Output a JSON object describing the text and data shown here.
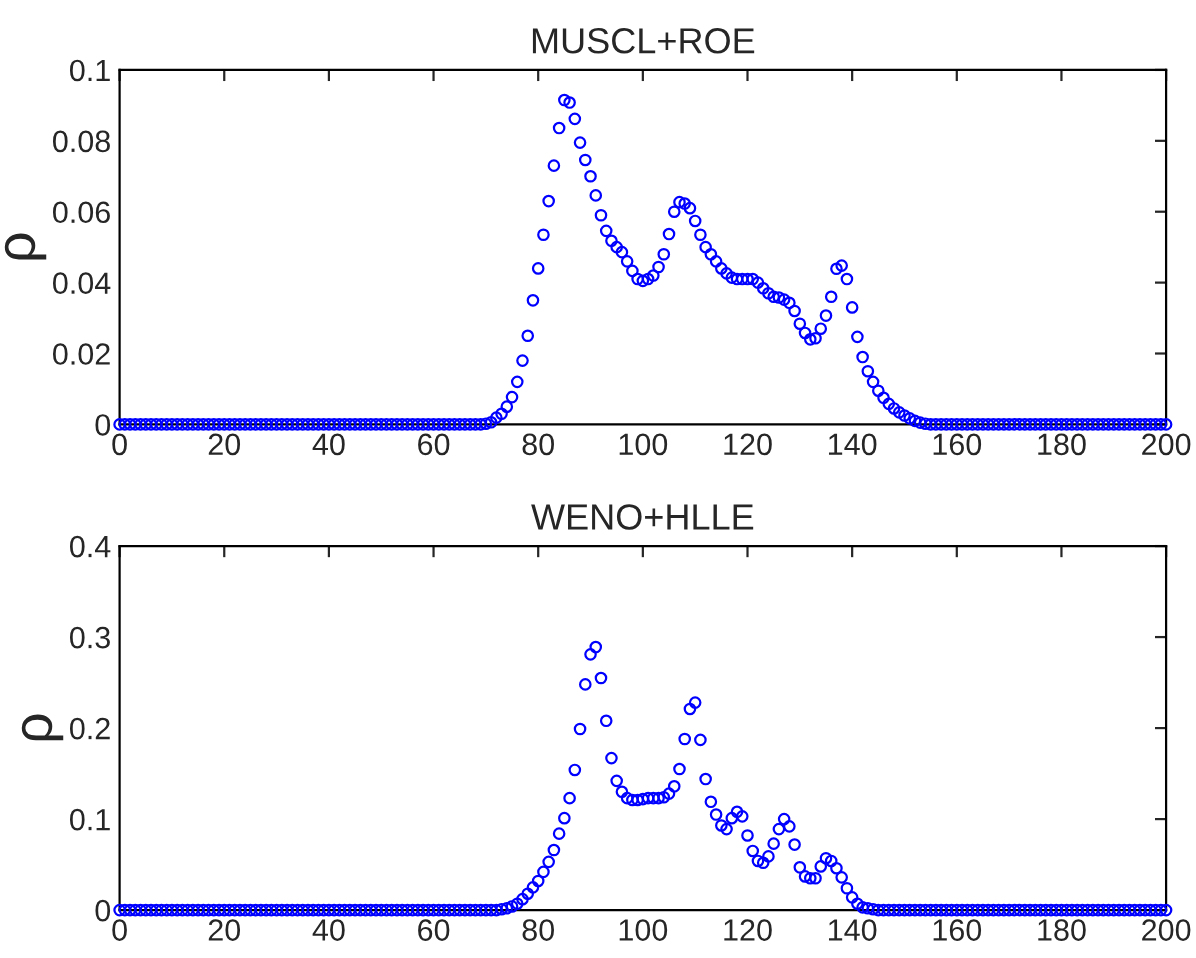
{
  "chart_data": [
    {
      "type": "scatter",
      "title": "MUSCL+ROE",
      "ylabel": "ρ",
      "marker": "circle",
      "grid": false,
      "xlim": [
        0,
        200
      ],
      "ylim": [
        0,
        0.1
      ],
      "xticks": [
        0,
        20,
        40,
        60,
        80,
        100,
        120,
        140,
        160,
        180,
        200
      ],
      "yticks": [
        0,
        0.02,
        0.04,
        0.06,
        0.08,
        {
          "value": 0.1,
          "label": "0.1"
        }
      ],
      "x": [
        0,
        1,
        2,
        3,
        4,
        5,
        6,
        7,
        8,
        9,
        10,
        11,
        12,
        13,
        14,
        15,
        16,
        17,
        18,
        19,
        20,
        21,
        22,
        23,
        24,
        25,
        26,
        27,
        28,
        29,
        30,
        31,
        32,
        33,
        34,
        35,
        36,
        37,
        38,
        39,
        40,
        41,
        42,
        43,
        44,
        45,
        46,
        47,
        48,
        49,
        50,
        51,
        52,
        53,
        54,
        55,
        56,
        57,
        58,
        59,
        60,
        61,
        62,
        63,
        64,
        65,
        66,
        67,
        68,
        69,
        70,
        71,
        72,
        73,
        74,
        75,
        76,
        77,
        78,
        79,
        80,
        81,
        82,
        83,
        84,
        85,
        86,
        87,
        88,
        89,
        90,
        91,
        92,
        93,
        94,
        95,
        96,
        97,
        98,
        99,
        100,
        101,
        102,
        103,
        104,
        105,
        106,
        107,
        108,
        109,
        110,
        111,
        112,
        113,
        114,
        115,
        116,
        117,
        118,
        119,
        120,
        121,
        122,
        123,
        124,
        125,
        126,
        127,
        128,
        129,
        130,
        131,
        132,
        133,
        134,
        135,
        136,
        137,
        138,
        139,
        140,
        141,
        142,
        143,
        144,
        145,
        146,
        147,
        148,
        149,
        150,
        151,
        152,
        153,
        154,
        155,
        156,
        157,
        158,
        159,
        160,
        161,
        162,
        163,
        164,
        165,
        166,
        167,
        168,
        169,
        170,
        171,
        172,
        173,
        174,
        175,
        176,
        177,
        178,
        179,
        180,
        181,
        182,
        183,
        184,
        185,
        186,
        187,
        188,
        189,
        190,
        191,
        192,
        193,
        194,
        195,
        196,
        197,
        198,
        199,
        200
      ],
      "series": [
        {
          "color": "#0000ff",
          "values": [
            0,
            0,
            0,
            0,
            0,
            0,
            0,
            0,
            0,
            0,
            0,
            0,
            0,
            0,
            0,
            0,
            0,
            0,
            0,
            0,
            0,
            0,
            0,
            0,
            0,
            0,
            0,
            0,
            0,
            0,
            0,
            0,
            0,
            0,
            0,
            0,
            0,
            0,
            0,
            0,
            0,
            0,
            0,
            0,
            0,
            0,
            0,
            0,
            0,
            0,
            0,
            0,
            0,
            0,
            0,
            0,
            0,
            0,
            0,
            0,
            0,
            0,
            0,
            0,
            0,
            0,
            0,
            0,
            0,
            0,
            0.0002,
            0.0006,
            0.0019,
            0.003,
            0.005,
            0.0077,
            0.012,
            0.018,
            0.025,
            0.035,
            0.044,
            0.0535,
            0.063,
            0.073,
            0.0836,
            0.0915,
            0.0908,
            0.0862,
            0.0795,
            0.0746,
            0.07,
            0.0646,
            0.059,
            0.0546,
            0.0518,
            0.05,
            0.0486,
            0.046,
            0.0433,
            0.041,
            0.0405,
            0.041,
            0.042,
            0.0444,
            0.048,
            0.0537,
            0.06,
            0.0627,
            0.0623,
            0.061,
            0.0574,
            0.0535,
            0.05,
            0.048,
            0.046,
            0.044,
            0.0426,
            0.0414,
            0.041,
            0.041,
            0.041,
            0.041,
            0.04,
            0.0384,
            0.037,
            0.036,
            0.0358,
            0.0352,
            0.0343,
            0.032,
            0.0284,
            0.0258,
            0.024,
            0.0243,
            0.027,
            0.0307,
            0.036,
            0.0439,
            0.0448,
            0.041,
            0.033,
            0.0247,
            0.019,
            0.015,
            0.012,
            0.0095,
            0.0075,
            0.0058,
            0.0045,
            0.0034,
            0.0025,
            0.0017,
            0.001,
            0.0005,
            0.0002,
            0,
            0,
            0,
            0,
            0,
            0,
            0,
            0,
            0,
            0,
            0,
            0,
            0,
            0,
            0,
            0,
            0,
            0,
            0,
            0,
            0,
            0,
            0,
            0,
            0,
            0,
            0,
            0,
            0,
            0,
            0,
            0,
            0,
            0,
            0,
            0,
            0,
            0,
            0,
            0,
            0,
            0,
            0,
            0,
            0,
            0
          ]
        }
      ]
    },
    {
      "type": "scatter",
      "title": "WENO+HLLE",
      "ylabel": "ρ",
      "marker": "circle",
      "grid": false,
      "xlim": [
        0,
        200
      ],
      "ylim": [
        0,
        0.4
      ],
      "xticks": [
        0,
        20,
        40,
        60,
        80,
        100,
        120,
        140,
        160,
        180,
        200
      ],
      "yticks": [
        0,
        0.1,
        0.2,
        0.3,
        0.4
      ],
      "x": [
        0,
        1,
        2,
        3,
        4,
        5,
        6,
        7,
        8,
        9,
        10,
        11,
        12,
        13,
        14,
        15,
        16,
        17,
        18,
        19,
        20,
        21,
        22,
        23,
        24,
        25,
        26,
        27,
        28,
        29,
        30,
        31,
        32,
        33,
        34,
        35,
        36,
        37,
        38,
        39,
        40,
        41,
        42,
        43,
        44,
        45,
        46,
        47,
        48,
        49,
        50,
        51,
        52,
        53,
        54,
        55,
        56,
        57,
        58,
        59,
        60,
        61,
        62,
        63,
        64,
        65,
        66,
        67,
        68,
        69,
        70,
        71,
        72,
        73,
        74,
        75,
        76,
        77,
        78,
        79,
        80,
        81,
        82,
        83,
        84,
        85,
        86,
        87,
        88,
        89,
        90,
        91,
        92,
        93,
        94,
        95,
        96,
        97,
        98,
        99,
        100,
        101,
        102,
        103,
        104,
        105,
        106,
        107,
        108,
        109,
        110,
        111,
        112,
        113,
        114,
        115,
        116,
        117,
        118,
        119,
        120,
        121,
        122,
        123,
        124,
        125,
        126,
        127,
        128,
        129,
        130,
        131,
        132,
        133,
        134,
        135,
        136,
        137,
        138,
        139,
        140,
        141,
        142,
        143,
        144,
        145,
        146,
        147,
        148,
        149,
        150,
        151,
        152,
        153,
        154,
        155,
        156,
        157,
        158,
        159,
        160,
        161,
        162,
        163,
        164,
        165,
        166,
        167,
        168,
        169,
        170,
        171,
        172,
        173,
        174,
        175,
        176,
        177,
        178,
        179,
        180,
        181,
        182,
        183,
        184,
        185,
        186,
        187,
        188,
        189,
        190,
        191,
        192,
        193,
        194,
        195,
        196,
        197,
        198,
        199,
        200
      ],
      "series": [
        {
          "color": "#0000ff",
          "values": [
            0,
            0,
            0,
            0,
            0,
            0,
            0,
            0,
            0,
            0,
            0,
            0,
            0,
            0,
            0,
            0,
            0,
            0,
            0,
            0,
            0,
            0,
            0,
            0,
            0,
            0,
            0,
            0,
            0,
            0,
            0,
            0,
            0,
            0,
            0,
            0,
            0,
            0,
            0,
            0,
            0,
            0,
            0,
            0,
            0,
            0,
            0,
            0,
            0,
            0,
            0,
            0,
            0,
            0,
            0,
            0,
            0,
            0,
            0,
            0,
            0,
            0,
            0,
            0,
            0,
            0,
            0,
            0,
            0,
            0,
            0,
            0,
            0,
            0.001,
            0.002,
            0.004,
            0.007,
            0.012,
            0.018,
            0.025,
            0.032,
            0.042,
            0.053,
            0.066,
            0.084,
            0.101,
            0.123,
            0.154,
            0.199,
            0.248,
            0.281,
            0.289,
            0.255,
            0.208,
            0.167,
            0.142,
            0.13,
            0.123,
            0.121,
            0.121,
            0.122,
            0.123,
            0.123,
            0.123,
            0.124,
            0.128,
            0.136,
            0.155,
            0.188,
            0.221,
            0.228,
            0.187,
            0.144,
            0.119,
            0.105,
            0.093,
            0.089,
            0.101,
            0.108,
            0.103,
            0.082,
            0.065,
            0.054,
            0.052,
            0.059,
            0.073,
            0.089,
            0.1,
            0.092,
            0.072,
            0.047,
            0.037,
            0.035,
            0.035,
            0.048,
            0.057,
            0.054,
            0.046,
            0.036,
            0.024,
            0.014,
            0.007,
            0.003,
            0.002,
            0.001,
            0,
            0,
            0,
            0,
            0,
            0,
            0,
            0,
            0,
            0,
            0,
            0,
            0,
            0,
            0,
            0,
            0,
            0,
            0,
            0,
            0,
            0,
            0,
            0,
            0,
            0,
            0,
            0,
            0,
            0,
            0,
            0,
            0,
            0,
            0,
            0,
            0,
            0,
            0,
            0,
            0,
            0,
            0,
            0,
            0,
            0,
            0,
            0,
            0,
            0,
            0,
            0,
            0,
            0,
            0,
            0
          ]
        }
      ]
    }
  ]
}
